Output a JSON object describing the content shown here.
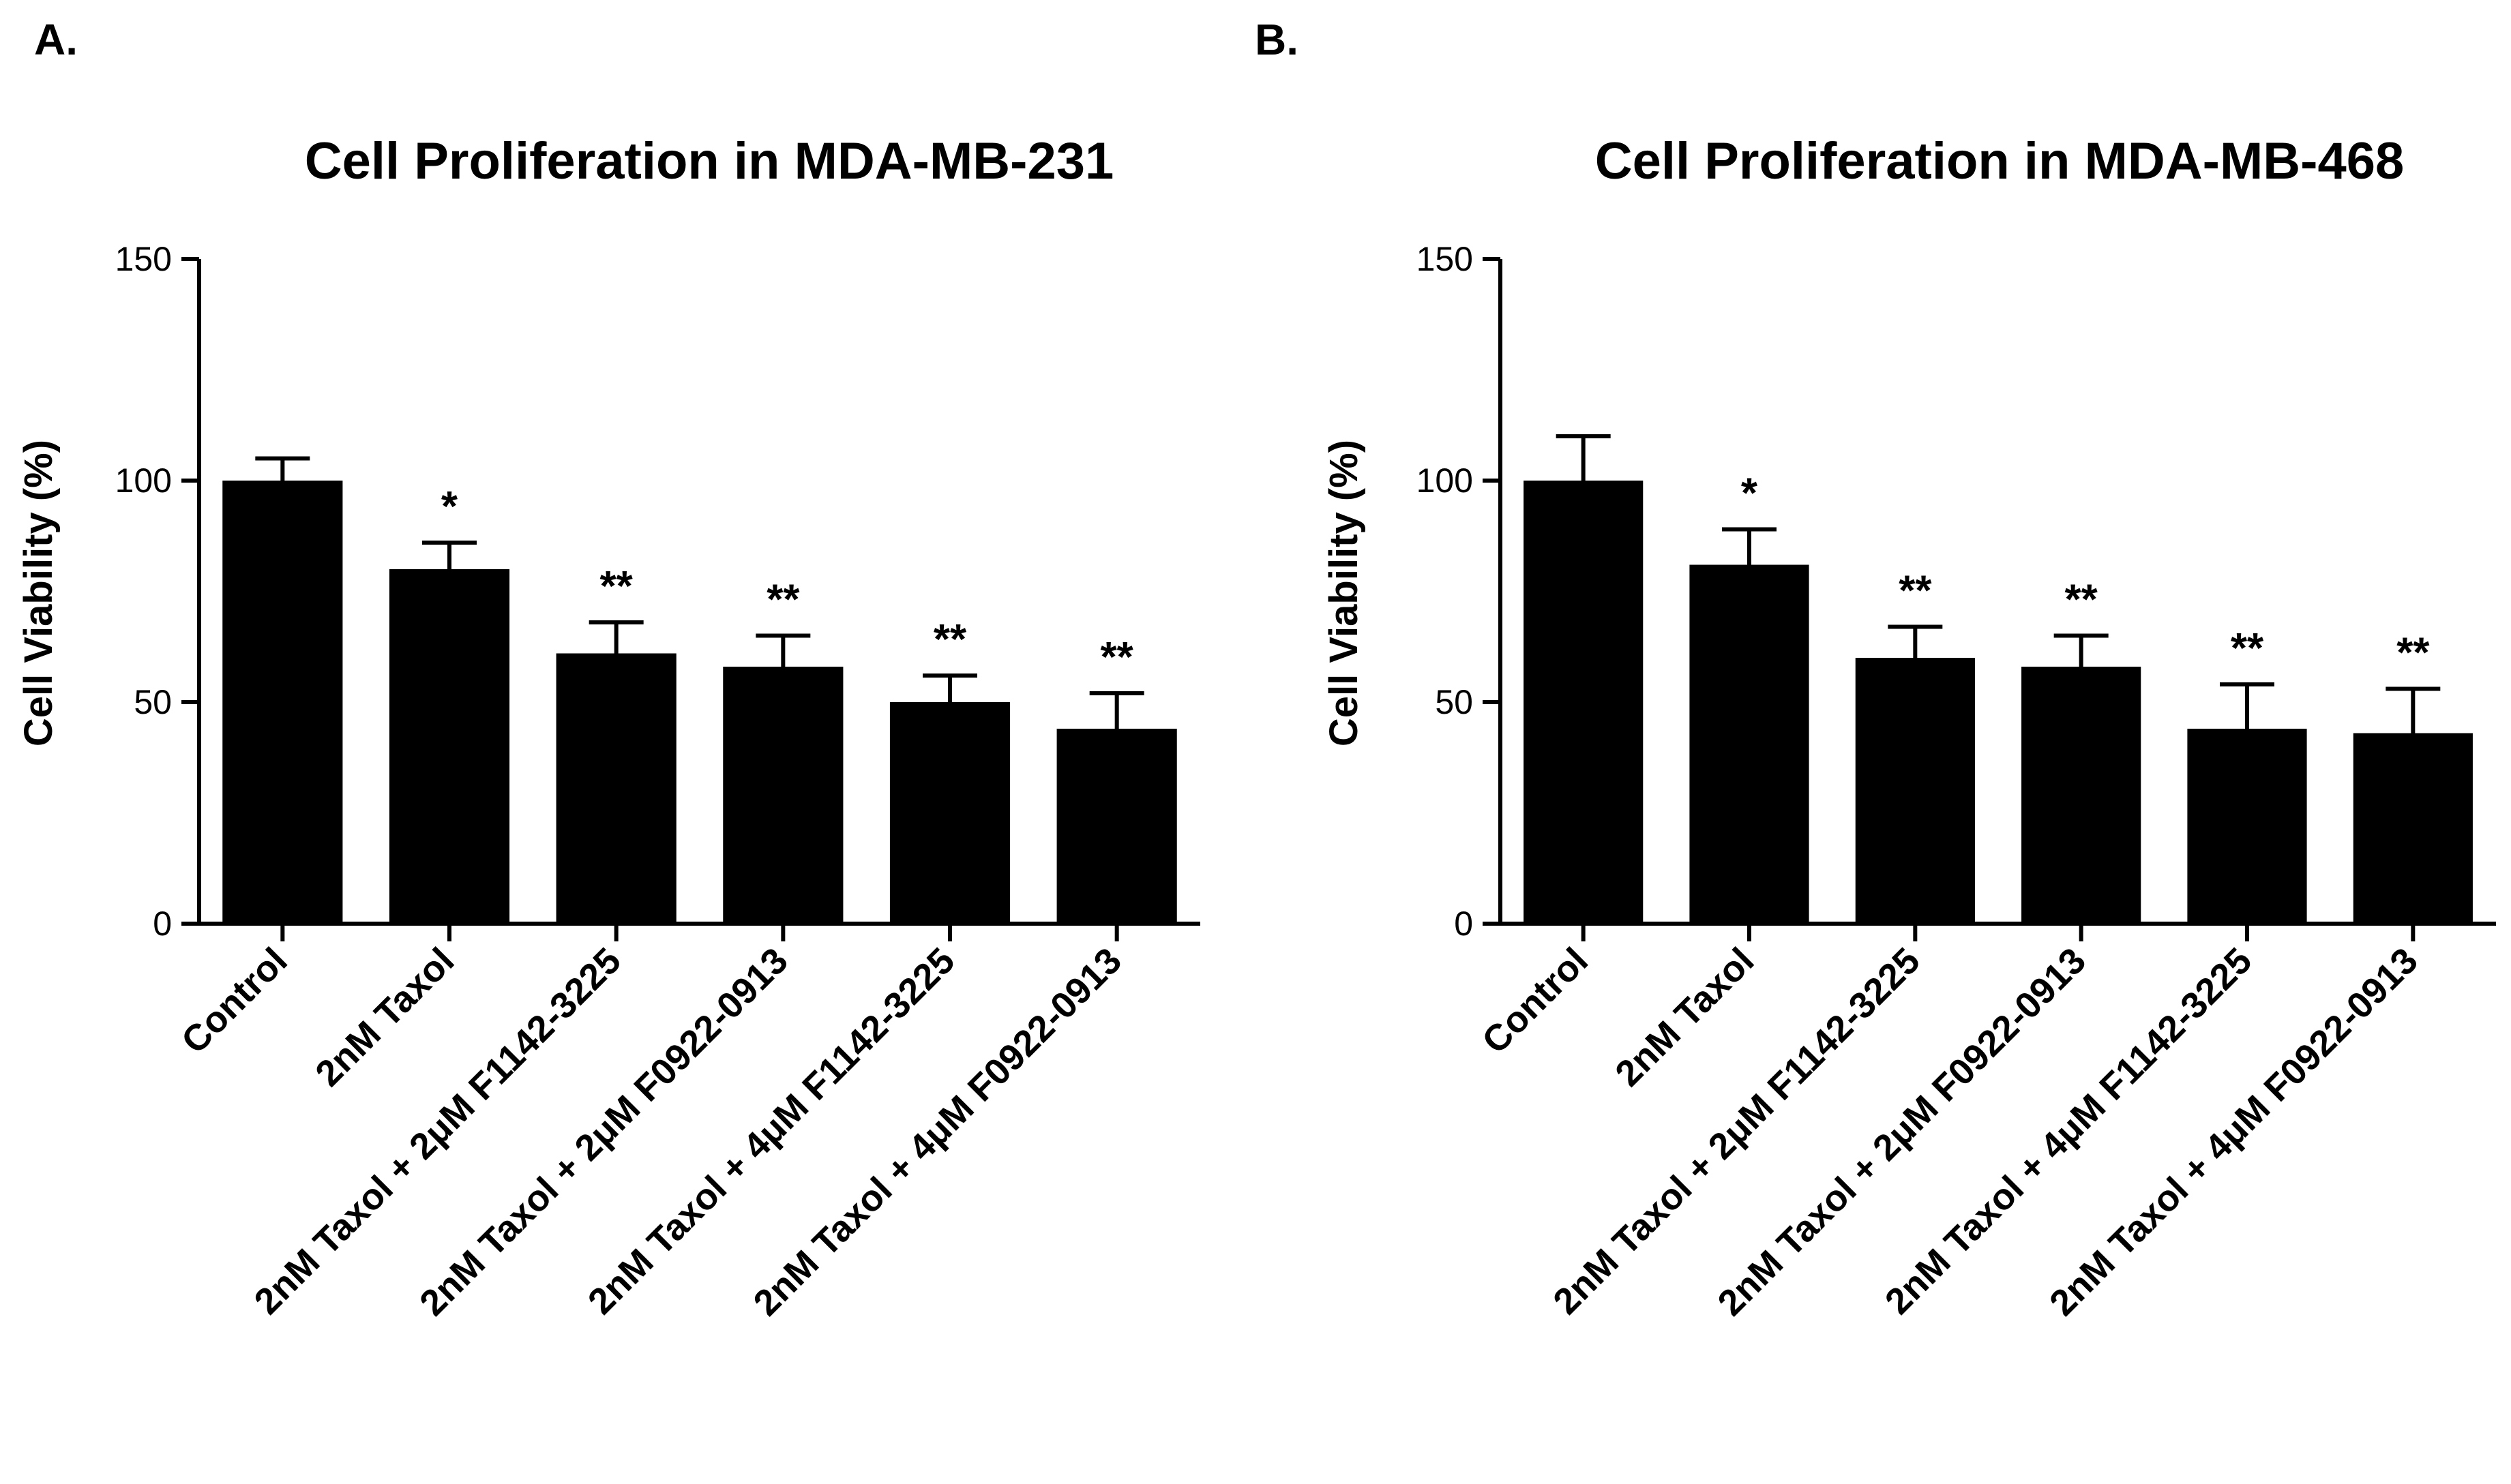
{
  "chart_data": [
    {
      "type": "bar",
      "panel": "A.",
      "title": "Cell Proliferation in MDA-MB-231",
      "xlabel": "",
      "ylabel": "Cell Viability (%)",
      "ylim": [
        0,
        150
      ],
      "yticks": [
        0,
        50,
        100,
        150
      ],
      "categories": [
        "Control",
        "2nM Taxol",
        "2nM Taxol + 2μM F1142-3225",
        "2nM Taxol + 2μM F0922-0913",
        "2nM Taxol + 4μM F1142-3225",
        "2nM Taxol + 4μM F0922-0913"
      ],
      "values": [
        100,
        80,
        61,
        58,
        50,
        44
      ],
      "errors": [
        5,
        6,
        7,
        7,
        6,
        8
      ],
      "significance": [
        "",
        "*",
        "**",
        "**",
        "**",
        "**"
      ],
      "bar_color": "#000000",
      "grid": false,
      "legend": "none"
    },
    {
      "type": "bar",
      "panel": "B.",
      "title": "Cell Proliferation in MDA-MB-468",
      "xlabel": "",
      "ylabel": "Cell Viability (%)",
      "ylim": [
        0,
        150
      ],
      "yticks": [
        0,
        50,
        100,
        150
      ],
      "categories": [
        "Control",
        "2nM Taxol",
        "2nM Taxol + 2μM F1142-3225",
        "2nM Taxol + 2μM F0922-0913",
        "2nM Taxol + 4μM F1142-3225",
        "2nM Taxol + 4μM F0922-0913"
      ],
      "values": [
        100,
        81,
        60,
        58,
        44,
        43
      ],
      "errors": [
        10,
        8,
        7,
        7,
        10,
        10
      ],
      "significance": [
        "",
        "*",
        "**",
        "**",
        "**",
        "**"
      ],
      "bar_color": "#000000",
      "grid": false,
      "legend": "none"
    }
  ]
}
